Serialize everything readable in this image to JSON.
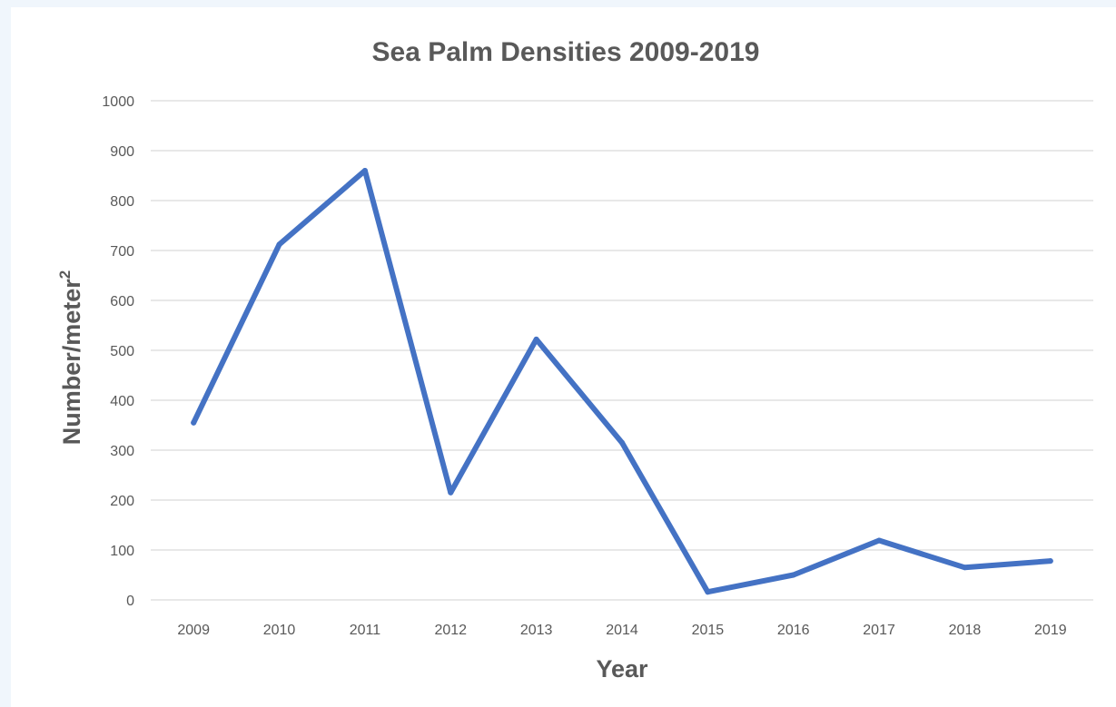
{
  "chart_data": {
    "type": "line",
    "title": "Sea Palm Densities 2009-2019",
    "xlabel": "Year",
    "ylabel": "Number/meter",
    "ylabel_superscript": "2",
    "categories": [
      "2009",
      "2010",
      "2011",
      "2012",
      "2013",
      "2014",
      "2015",
      "2016",
      "2017",
      "2018",
      "2019"
    ],
    "series": [
      {
        "values": [
          355,
          712,
          860,
          215,
          522,
          315,
          16,
          50,
          119,
          65,
          78
        ],
        "color": "#4472c4"
      }
    ],
    "ylim": [
      0,
      1000
    ],
    "yticks": [
      0,
      100,
      200,
      300,
      400,
      500,
      600,
      700,
      800,
      900,
      1000
    ],
    "grid": true,
    "legend": "none"
  }
}
